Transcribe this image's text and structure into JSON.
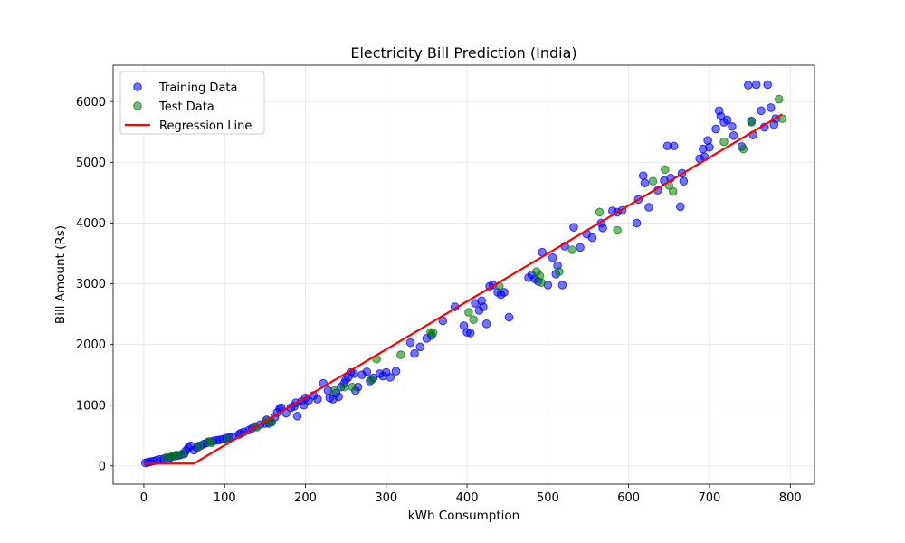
{
  "chart_data": {
    "type": "scatter",
    "title": "Electricity Bill Prediction (India)",
    "xlabel": "kWh Consumption",
    "ylabel": "Bill Amount (Rs)",
    "xlim": [
      -38,
      830
    ],
    "ylim": [
      -300,
      6600
    ],
    "xticks": [
      0,
      100,
      200,
      300,
      400,
      500,
      600,
      700,
      800
    ],
    "yticks": [
      0,
      1000,
      2000,
      3000,
      4000,
      5000,
      6000
    ],
    "grid": true,
    "legend_position": "top-left",
    "legend": {
      "training": "Training Data",
      "test": "Test Data",
      "regression": "Regression Line"
    },
    "colors": {
      "training": "#0000ff",
      "test": "#008000",
      "regression": "#ff0000",
      "grid": "#e6e6e6"
    },
    "series": [
      {
        "name": "Training Data",
        "kind": "scatter",
        "points": [
          [
            2,
            50
          ],
          [
            5,
            60
          ],
          [
            8,
            70
          ],
          [
            12,
            80
          ],
          [
            16,
            95
          ],
          [
            20,
            110
          ],
          [
            25,
            120
          ],
          [
            30,
            130
          ],
          [
            33,
            140
          ],
          [
            38,
            160
          ],
          [
            42,
            170
          ],
          [
            46,
            185
          ],
          [
            50,
            200
          ],
          [
            52,
            250
          ],
          [
            55,
            300
          ],
          [
            58,
            330
          ],
          [
            62,
            260
          ],
          [
            66,
            300
          ],
          [
            70,
            330
          ],
          [
            74,
            360
          ],
          [
            78,
            380
          ],
          [
            82,
            400
          ],
          [
            86,
            410
          ],
          [
            90,
            420
          ],
          [
            94,
            430
          ],
          [
            98,
            440
          ],
          [
            102,
            460
          ],
          [
            106,
            470
          ],
          [
            110,
            480
          ],
          [
            118,
            520
          ],
          [
            120,
            540
          ],
          [
            124,
            560
          ],
          [
            130,
            590
          ],
          [
            134,
            620
          ],
          [
            138,
            650
          ],
          [
            144,
            680
          ],
          [
            150,
            700
          ],
          [
            152,
            760
          ],
          [
            155,
            700
          ],
          [
            158,
            720
          ],
          [
            162,
            800
          ],
          [
            165,
            880
          ],
          [
            168,
            940
          ],
          [
            170,
            960
          ],
          [
            176,
            870
          ],
          [
            182,
            960
          ],
          [
            186,
            980
          ],
          [
            188,
            1040
          ],
          [
            190,
            820
          ],
          [
            195,
            1060
          ],
          [
            198,
            1000
          ],
          [
            200,
            1120
          ],
          [
            204,
            1080
          ],
          [
            210,
            1160
          ],
          [
            215,
            1100
          ],
          [
            222,
            1360
          ],
          [
            228,
            1240
          ],
          [
            230,
            1120
          ],
          [
            234,
            1100
          ],
          [
            238,
            1200
          ],
          [
            241,
            1140
          ],
          [
            244,
            1300
          ],
          [
            248,
            1360
          ],
          [
            250,
            1420
          ],
          [
            253,
            1460
          ],
          [
            256,
            1540
          ],
          [
            260,
            1520
          ],
          [
            262,
            1240
          ],
          [
            265,
            1300
          ],
          [
            270,
            1500
          ],
          [
            276,
            1550
          ],
          [
            280,
            1400
          ],
          [
            284,
            1450
          ],
          [
            292,
            1520
          ],
          [
            296,
            1480
          ],
          [
            300,
            1540
          ],
          [
            305,
            1460
          ],
          [
            312,
            1560
          ],
          [
            330,
            2030
          ],
          [
            335,
            1850
          ],
          [
            342,
            1960
          ],
          [
            350,
            2100
          ],
          [
            356,
            2150
          ],
          [
            370,
            2390
          ],
          [
            385,
            2620
          ],
          [
            396,
            2310
          ],
          [
            400,
            2200
          ],
          [
            404,
            2190
          ],
          [
            410,
            2680
          ],
          [
            415,
            2560
          ],
          [
            418,
            2720
          ],
          [
            420,
            2620
          ],
          [
            424,
            2340
          ],
          [
            428,
            2960
          ],
          [
            432,
            2980
          ],
          [
            438,
            2860
          ],
          [
            442,
            2820
          ],
          [
            446,
            2860
          ],
          [
            452,
            2450
          ],
          [
            476,
            3100
          ],
          [
            480,
            3150
          ],
          [
            484,
            3080
          ],
          [
            488,
            3040
          ],
          [
            493,
            3520
          ],
          [
            500,
            2980
          ],
          [
            506,
            3430
          ],
          [
            510,
            3160
          ],
          [
            512,
            3300
          ],
          [
            518,
            2980
          ],
          [
            521,
            3620
          ],
          [
            532,
            3930
          ],
          [
            540,
            3600
          ],
          [
            548,
            3820
          ],
          [
            555,
            3760
          ],
          [
            566,
            4000
          ],
          [
            568,
            3920
          ],
          [
            580,
            4200
          ],
          [
            586,
            4180
          ],
          [
            592,
            4210
          ],
          [
            610,
            4000
          ],
          [
            612,
            4390
          ],
          [
            618,
            4780
          ],
          [
            620,
            4660
          ],
          [
            625,
            4260
          ],
          [
            636,
            4540
          ],
          [
            644,
            4700
          ],
          [
            648,
            5270
          ],
          [
            652,
            4740
          ],
          [
            656,
            5270
          ],
          [
            664,
            4270
          ],
          [
            666,
            4820
          ],
          [
            668,
            4690
          ],
          [
            688,
            5060
          ],
          [
            692,
            5220
          ],
          [
            694,
            5090
          ],
          [
            698,
            5360
          ],
          [
            700,
            5250
          ],
          [
            708,
            5550
          ],
          [
            712,
            5850
          ],
          [
            714,
            5760
          ],
          [
            718,
            5660
          ],
          [
            722,
            5700
          ],
          [
            728,
            5590
          ],
          [
            730,
            5440
          ],
          [
            740,
            5260
          ],
          [
            748,
            6270
          ],
          [
            754,
            5450
          ],
          [
            758,
            6280
          ],
          [
            764,
            5850
          ],
          [
            768,
            5580
          ],
          [
            772,
            6280
          ],
          [
            776,
            5900
          ],
          [
            780,
            5620
          ],
          [
            782,
            5720
          ],
          [
            752,
            5680
          ]
        ]
      },
      {
        "name": "Test Data",
        "kind": "scatter",
        "points": [
          [
            28,
            140
          ],
          [
            35,
            160
          ],
          [
            40,
            180
          ],
          [
            48,
            200
          ],
          [
            68,
            330
          ],
          [
            80,
            400
          ],
          [
            84,
            380
          ],
          [
            104,
            440
          ],
          [
            140,
            640
          ],
          [
            152,
            740
          ],
          [
            158,
            720
          ],
          [
            236,
            1240
          ],
          [
            248,
            1300
          ],
          [
            258,
            1300
          ],
          [
            282,
            1420
          ],
          [
            288,
            1760
          ],
          [
            318,
            1830
          ],
          [
            355,
            2200
          ],
          [
            358,
            2190
          ],
          [
            402,
            2530
          ],
          [
            408,
            2410
          ],
          [
            440,
            2960
          ],
          [
            486,
            3200
          ],
          [
            490,
            3130
          ],
          [
            492,
            3020
          ],
          [
            514,
            3200
          ],
          [
            530,
            3560
          ],
          [
            564,
            4180
          ],
          [
            586,
            3880
          ],
          [
            630,
            4690
          ],
          [
            645,
            4880
          ],
          [
            650,
            4620
          ],
          [
            655,
            4520
          ],
          [
            718,
            5340
          ],
          [
            742,
            5220
          ],
          [
            752,
            5660
          ],
          [
            786,
            6040
          ],
          [
            790,
            5720
          ]
        ]
      },
      {
        "name": "Regression Line",
        "kind": "line",
        "points": [
          [
            0,
            40
          ],
          [
            62,
            40
          ],
          [
            790,
            5790
          ]
        ]
      }
    ]
  }
}
